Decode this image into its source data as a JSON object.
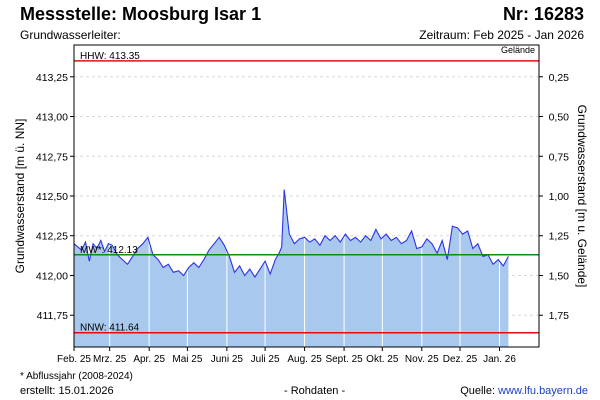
{
  "header": {
    "title": "Messstelle: Moosburg Isar 1",
    "station_number": "Nr: 16283",
    "aquifer_label": "Grundwasserleiter:",
    "period": "Zeitraum: Feb 2025 - Jan 2026"
  },
  "footer": {
    "footnote": "* Abflussjahr (2008-2024)",
    "created": "erstellt:  15.01.2026",
    "raw_data": "- Rohdaten -",
    "source_label": "Quelle:",
    "source_link": "www.lfu.bayern.de"
  },
  "colors": {
    "line": "#2d33e6",
    "fill": "#a8c8ee",
    "hhw": "#e01010",
    "mw": "#118a1a",
    "nnw": "#e01010",
    "grid": "#d8d8d8",
    "month_line": "#ffffff"
  },
  "chart_data": {
    "type": "area",
    "ylabel_left": "Grundwasserstand [m ü. NN]",
    "ylabel_right": "Grundwasserstand [m u. Gelände]",
    "right_axis_top_label": "Gelände",
    "ylim": [
      411.55,
      413.45
    ],
    "y_ticks": [
      "411,75",
      "412,00",
      "412,25",
      "412,50",
      "412,75",
      "413,00",
      "413,25"
    ],
    "y_tick_values": [
      411.75,
      412.0,
      412.25,
      412.5,
      412.75,
      413.0,
      413.25
    ],
    "right_ticks": [
      "1,75",
      "1,50",
      "1,25",
      "1,00",
      "0,75",
      "0,50",
      "0,25"
    ],
    "right_tick_values": [
      411.75,
      412.0,
      412.25,
      412.5,
      412.75,
      413.0,
      413.25
    ],
    "months": [
      "Feb. 25",
      "Mrz. 25",
      "Apr. 25",
      "Mai 25",
      "Juni 25",
      "Juli 25",
      "Aug. 25",
      "Sept. 25",
      "Okt. 25",
      "Nov. 25",
      "Dez. 25",
      "Jan. 26"
    ],
    "month_lengths": [
      28,
      31,
      30,
      31,
      30,
      31,
      31,
      30,
      31,
      30,
      31,
      31
    ],
    "reference_lines": [
      {
        "label": "HHW: 413.35",
        "value": 413.35,
        "color_key": "hhw"
      },
      {
        "label": "MW*: 412.13",
        "value": 412.13,
        "color_key": "mw"
      },
      {
        "label": "NNW: 411.64",
        "value": 411.64,
        "color_key": "nnw"
      }
    ],
    "series": [
      {
        "x": [
          "2025-02-01",
          "2025-02-04",
          "2025-02-07",
          "2025-02-10",
          "2025-02-13",
          "2025-02-16",
          "2025-02-19",
          "2025-02-22",
          "2025-02-25",
          "2025-02-28",
          "2025-03-03",
          "2025-03-07",
          "2025-03-11",
          "2025-03-15",
          "2025-03-19",
          "2025-03-23",
          "2025-03-27",
          "2025-03-31",
          "2025-04-04",
          "2025-04-08",
          "2025-04-12",
          "2025-04-16",
          "2025-04-20",
          "2025-04-24",
          "2025-04-28",
          "2025-05-02",
          "2025-05-06",
          "2025-05-10",
          "2025-05-14",
          "2025-05-18",
          "2025-05-22",
          "2025-05-26",
          "2025-05-30",
          "2025-06-03",
          "2025-06-07",
          "2025-06-11",
          "2025-06-15",
          "2025-06-19",
          "2025-06-23",
          "2025-06-27",
          "2025-07-01",
          "2025-07-05",
          "2025-07-09",
          "2025-07-12",
          "2025-07-14",
          "2025-07-16",
          "2025-07-20",
          "2025-07-24",
          "2025-07-28",
          "2025-08-01",
          "2025-08-05",
          "2025-08-09",
          "2025-08-13",
          "2025-08-17",
          "2025-08-21",
          "2025-08-25",
          "2025-08-29",
          "2025-09-02",
          "2025-09-06",
          "2025-09-10",
          "2025-09-14",
          "2025-09-18",
          "2025-09-22",
          "2025-09-26",
          "2025-09-30",
          "2025-10-04",
          "2025-10-08",
          "2025-10-12",
          "2025-10-16",
          "2025-10-20",
          "2025-10-24",
          "2025-10-28",
          "2025-11-01",
          "2025-11-05",
          "2025-11-09",
          "2025-11-13",
          "2025-11-17",
          "2025-11-21",
          "2025-11-25",
          "2025-11-29",
          "2025-12-03",
          "2025-12-07",
          "2025-12-11",
          "2025-12-15",
          "2025-12-19",
          "2025-12-23",
          "2025-12-27",
          "2025-12-31",
          "2026-01-04",
          "2026-01-08"
        ],
        "y": [
          412.2,
          412.18,
          412.16,
          412.21,
          412.09,
          412.2,
          412.17,
          412.22,
          412.15,
          412.2,
          412.19,
          412.13,
          412.1,
          412.07,
          412.12,
          412.17,
          412.2,
          412.24,
          412.13,
          412.1,
          412.05,
          412.07,
          412.02,
          412.03,
          412.0,
          412.05,
          412.08,
          412.05,
          412.1,
          412.16,
          412.2,
          412.24,
          412.19,
          412.12,
          412.02,
          412.06,
          412.0,
          412.04,
          411.99,
          412.04,
          412.09,
          412.01,
          412.1,
          412.14,
          412.18,
          412.54,
          412.26,
          412.2,
          412.23,
          412.24,
          412.21,
          412.23,
          412.19,
          412.25,
          412.22,
          412.25,
          412.21,
          412.26,
          412.22,
          412.24,
          412.21,
          412.25,
          412.22,
          412.29,
          412.23,
          412.26,
          412.22,
          412.24,
          412.2,
          412.22,
          412.28,
          412.17,
          412.18,
          412.23,
          412.2,
          412.14,
          412.22,
          412.1,
          412.31,
          412.3,
          412.26,
          412.28,
          412.17,
          412.2,
          412.12,
          412.13,
          412.07,
          412.1,
          412.06,
          412.12
        ]
      }
    ]
  }
}
